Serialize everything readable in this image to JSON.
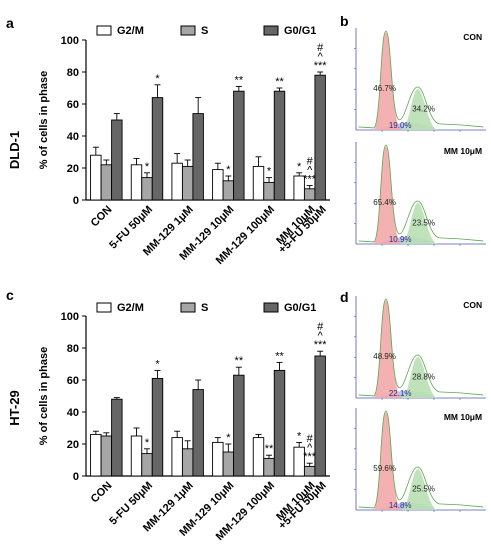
{
  "panel_letters": [
    "a",
    "b",
    "c",
    "d"
  ],
  "colors": {
    "g2m": "#ffffff",
    "s": "#a6a6a6",
    "g0g1": "#666666",
    "axis": "#000000",
    "hist_red": "#f2a9a9",
    "hist_green": "#b9dfb4",
    "hist_blue": "#b7bfe7",
    "hist_line": "#5fa653"
  },
  "chart_data": [
    {
      "type": "bar",
      "panel": "a",
      "row_label": "DLD-1",
      "ylabel": "% of cells in phase",
      "ylim": [
        0,
        100
      ],
      "yticks": [
        0,
        20,
        40,
        60,
        80,
        100
      ],
      "categories": [
        "CON",
        "5-FU 50μM",
        "MM-129 1μM",
        "MM-129 10μM",
        "MM-129 100μM",
        "MM 10μM +5-FU 50μM"
      ],
      "legend": [
        "G2/M",
        "S",
        "G0/G1"
      ],
      "series": [
        {
          "name": "G2/M",
          "values": [
            28,
            22,
            23,
            19,
            21,
            15
          ],
          "errors": [
            5,
            4,
            6,
            4,
            6,
            2
          ],
          "annotations": [
            "",
            "",
            "",
            "",
            "",
            "*"
          ]
        },
        {
          "name": "S",
          "values": [
            22,
            14,
            21,
            12,
            11,
            7
          ],
          "errors": [
            3,
            3,
            4,
            3,
            3,
            2
          ],
          "annotations": [
            "",
            "*",
            "",
            "*",
            "*",
            "#\n^\n***"
          ]
        },
        {
          "name": "G0/G1",
          "values": [
            50,
            64,
            54,
            68,
            68,
            78
          ],
          "errors": [
            4,
            8,
            10,
            3,
            2,
            2
          ],
          "annotations": [
            "",
            "*",
            "",
            "**",
            "**",
            "#\n^\n***"
          ]
        }
      ]
    },
    {
      "type": "bar",
      "panel": "c",
      "row_label": "HT-29",
      "ylabel": "% of cells in phase",
      "ylim": [
        0,
        100
      ],
      "yticks": [
        0,
        20,
        40,
        60,
        80,
        100
      ],
      "categories": [
        "CON",
        "5-FU 50μM",
        "MM-129 1μM",
        "MM-129 10μM",
        "MM-129 100μM",
        "MM 10μM +5-FU 50μM"
      ],
      "legend": [
        "G2/M",
        "S",
        "G0/G1"
      ],
      "series": [
        {
          "name": "G2/M",
          "values": [
            26,
            25,
            24,
            21,
            24,
            18
          ],
          "errors": [
            2,
            5,
            4,
            3,
            2,
            3
          ],
          "annotations": [
            "",
            "",
            "",
            "",
            "",
            "*"
          ]
        },
        {
          "name": "S",
          "values": [
            25,
            14,
            17,
            15,
            11,
            6
          ],
          "errors": [
            2,
            3,
            5,
            5,
            2,
            2
          ],
          "annotations": [
            "",
            "*",
            "",
            "*",
            "**",
            "#\n^\n***"
          ]
        },
        {
          "name": "G0/G1",
          "values": [
            48,
            61,
            54,
            63,
            66,
            75
          ],
          "errors": [
            1,
            5,
            6,
            5,
            5,
            3
          ],
          "annotations": [
            "",
            "*",
            "",
            "**",
            "**",
            "#\n^\n***"
          ]
        }
      ]
    }
  ],
  "histograms": [
    {
      "panel": "b",
      "label": "CON",
      "g0g1": "46.7%",
      "g2m": "34.2%",
      "s": "19.0%"
    },
    {
      "panel": "b",
      "label": "MM 10μM",
      "g0g1": "65.4%",
      "g2m": "23.5%",
      "s": "10.9%"
    },
    {
      "panel": "d",
      "label": "CON",
      "g0g1": "48.9%",
      "g2m": "28.8%",
      "s": "22.1%"
    },
    {
      "panel": "d",
      "label": "MM 10μM",
      "g0g1": "59.6%",
      "g2m": "25.5%",
      "s": "14.8%"
    }
  ]
}
